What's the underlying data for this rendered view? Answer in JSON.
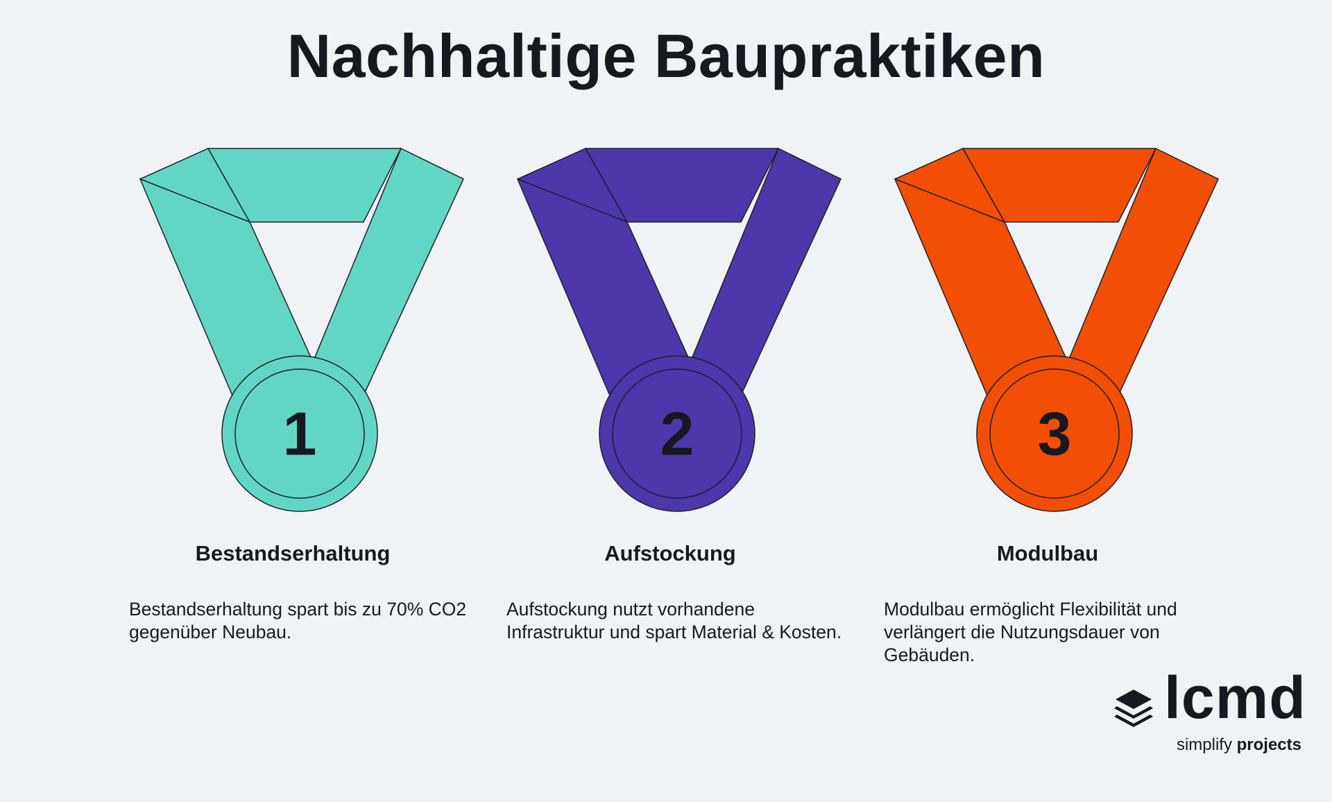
{
  "title": "Nachhaltige Baupraktiken",
  "practices": [
    {
      "number": "1",
      "heading": "Bestandserhaltung",
      "description": "Bestandserhaltung spart bis zu 70% CO2 gegenüber Neubau.",
      "color": "#62d6c4"
    },
    {
      "number": "2",
      "heading": "Aufstockung",
      "description": "Aufstockung nutzt vorhandene Infrastruktur und spart Material & Kosten.",
      "color": "#4d37ab"
    },
    {
      "number": "3",
      "heading": "Modulbau",
      "description": "Modulbau ermöglicht Flexibilität und verlängert die Nutzungsdauer von Gebäuden.",
      "color": "#f24e06"
    }
  ],
  "logo": {
    "wordmark": "lcmd",
    "tagline_light": "simplify",
    "tagline_bold": "projects",
    "icon": "stacked-layers-icon"
  }
}
